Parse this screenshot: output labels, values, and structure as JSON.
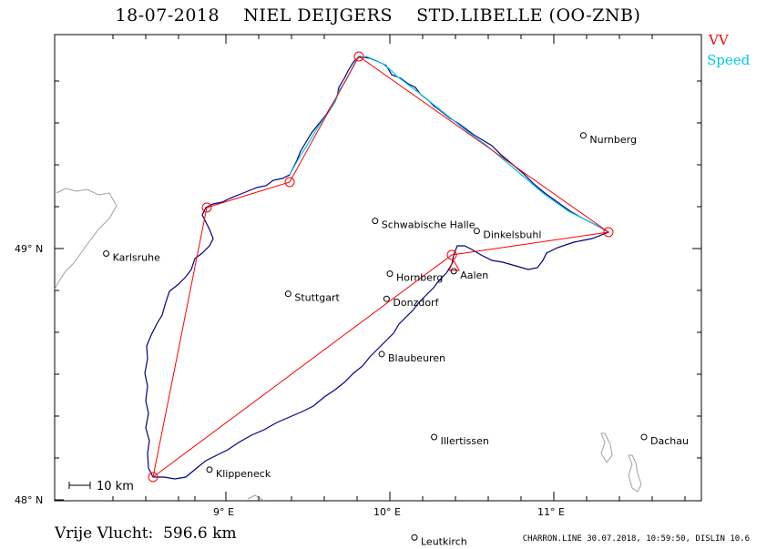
{
  "header": {
    "title": "18-07-2018    NIEL DEIJGERS    STD.LIBELLE (OO-ZNB)"
  },
  "legend": {
    "vv": "VV",
    "speed": "Speed",
    "colors": {
      "vv": "#ff0000",
      "speed": "#00c8e6",
      "track": "#000080"
    }
  },
  "axes": {
    "lat_labels": [
      "49° N",
      "48° N"
    ],
    "lon_labels": [
      "9° E",
      "10° E",
      "11° E"
    ]
  },
  "scale": {
    "label": "10 km"
  },
  "cities": [
    {
      "name": "Nurnberg",
      "lon": 11.18,
      "lat": 49.45
    },
    {
      "name": "Schwabische Halle",
      "lon": 9.91,
      "lat": 49.11
    },
    {
      "name": "Dinkelsbuhl",
      "lon": 10.53,
      "lat": 49.07
    },
    {
      "name": "Karlsruhe",
      "lon": 8.27,
      "lat": 48.98
    },
    {
      "name": "Hornberg",
      "lon": 10.0,
      "lat": 48.9
    },
    {
      "name": "Aalen",
      "lon": 10.39,
      "lat": 48.91
    },
    {
      "name": "Stuttgart",
      "lon": 9.38,
      "lat": 48.82
    },
    {
      "name": "Donzdorf",
      "lon": 9.98,
      "lat": 48.8
    },
    {
      "name": "Blaubeuren",
      "lon": 9.95,
      "lat": 48.58
    },
    {
      "name": "Illertissen",
      "lon": 10.27,
      "lat": 48.25
    },
    {
      "name": "Dachau",
      "lon": 11.55,
      "lat": 48.25
    },
    {
      "name": "Klippeneck",
      "lon": 8.9,
      "lat": 48.12
    },
    {
      "name": "Leutkirch",
      "lon": 10.15,
      "lat": 47.85
    }
  ],
  "turnpoints": [
    {
      "lon": 8.6,
      "lat": 48.06
    },
    {
      "lon": 8.88,
      "lat": 49.16
    },
    {
      "lon": 9.39,
      "lat": 49.26
    },
    {
      "lon": 9.8,
      "lat": 49.76
    },
    {
      "lon": 11.29,
      "lat": 49.06
    },
    {
      "lon": 10.38,
      "lat": 49.01
    }
  ],
  "footer": {
    "distance": "Vrije Vlucht:  596.6 km",
    "credit": "CHARRON.LINE 30.07.2018, 10:59:50, DISLIN 10.6"
  }
}
